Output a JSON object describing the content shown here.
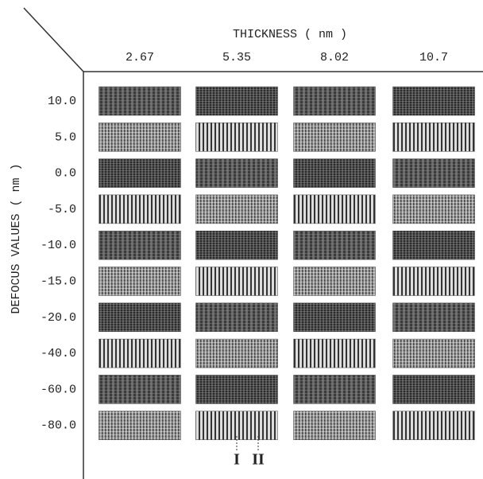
{
  "header": {
    "title": "THICKNESS ( nm )",
    "columns": [
      "2.67",
      "5.35",
      "8.02",
      "10.7"
    ]
  },
  "rows": {
    "title": "DEFOCUS VALUES ( nm )",
    "labels": [
      "10.0",
      "5.0",
      "0.0",
      "-5.0",
      "-10.0",
      "-15.0",
      "-20.0",
      "-40.0",
      "-60.0",
      "-80.0"
    ]
  },
  "markers": [
    "I",
    "II"
  ]
}
